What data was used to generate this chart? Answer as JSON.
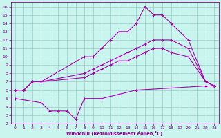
{
  "xlabel": "Windchill (Refroidissement éolien,°C)",
  "bg_color": "#caf5ef",
  "grid_color": "#99ccc8",
  "line_color": "#aa00aa",
  "xlim": [
    -0.5,
    23.5
  ],
  "ylim": [
    2,
    16.5
  ],
  "xticks": [
    0,
    1,
    2,
    3,
    4,
    5,
    6,
    7,
    8,
    9,
    10,
    11,
    12,
    13,
    14,
    15,
    16,
    17,
    18,
    19,
    20,
    21,
    22,
    23
  ],
  "yticks": [
    2,
    3,
    4,
    5,
    6,
    7,
    8,
    9,
    10,
    11,
    12,
    13,
    14,
    15,
    16
  ],
  "lines": [
    {
      "x": [
        0,
        1,
        2,
        3,
        8,
        9,
        10,
        11,
        12,
        13,
        14,
        15,
        16,
        17,
        18,
        20,
        22,
        23
      ],
      "y": [
        6,
        6,
        7,
        7,
        10,
        10,
        11,
        12,
        13,
        13,
        14,
        16,
        15,
        15,
        14,
        12,
        7,
        6.5
      ]
    },
    {
      "x": [
        0,
        1,
        2,
        3,
        8,
        9,
        10,
        11,
        12,
        13,
        14,
        15,
        16,
        17,
        18,
        20,
        22,
        23
      ],
      "y": [
        6,
        6,
        7,
        7,
        8,
        8.5,
        9,
        9.5,
        10,
        10.5,
        11,
        11.5,
        12,
        12,
        12,
        11,
        7,
        6.5
      ]
    },
    {
      "x": [
        0,
        1,
        2,
        3,
        8,
        9,
        10,
        11,
        12,
        13,
        14,
        15,
        16,
        17,
        18,
        20,
        22,
        23
      ],
      "y": [
        6,
        6,
        7,
        7,
        7.5,
        8,
        8.5,
        9,
        9.5,
        9.5,
        10,
        10.5,
        11,
        11,
        10.5,
        10,
        7,
        6.5
      ]
    },
    {
      "x": [
        0,
        3,
        4,
        5,
        6,
        7,
        8,
        10,
        12,
        14,
        22,
        23
      ],
      "y": [
        5,
        4.5,
        3.5,
        3.5,
        3.5,
        2.5,
        5,
        5,
        5.5,
        6,
        6.5,
        6.5
      ]
    }
  ]
}
